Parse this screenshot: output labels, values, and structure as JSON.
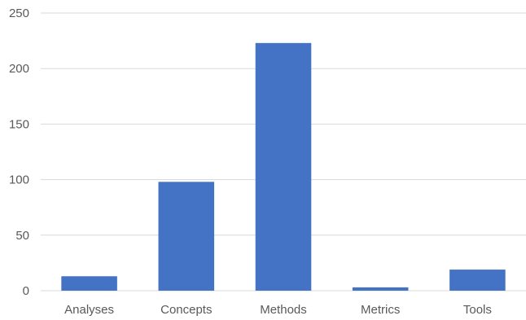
{
  "chart_data": {
    "type": "bar",
    "title": "",
    "xlabel": "",
    "ylabel": "",
    "categories": [
      "Analyses",
      "Concepts",
      "Methods",
      "Metrics",
      "Tools"
    ],
    "values": [
      13,
      98,
      223,
      3,
      19
    ],
    "ylim": [
      0,
      250
    ],
    "yticks": [
      0,
      50,
      100,
      150,
      200,
      250
    ],
    "grid": true,
    "legend": "none",
    "bar_color": "#4472c4",
    "grid_color": "#d9d9d9",
    "text_color": "#595959"
  }
}
